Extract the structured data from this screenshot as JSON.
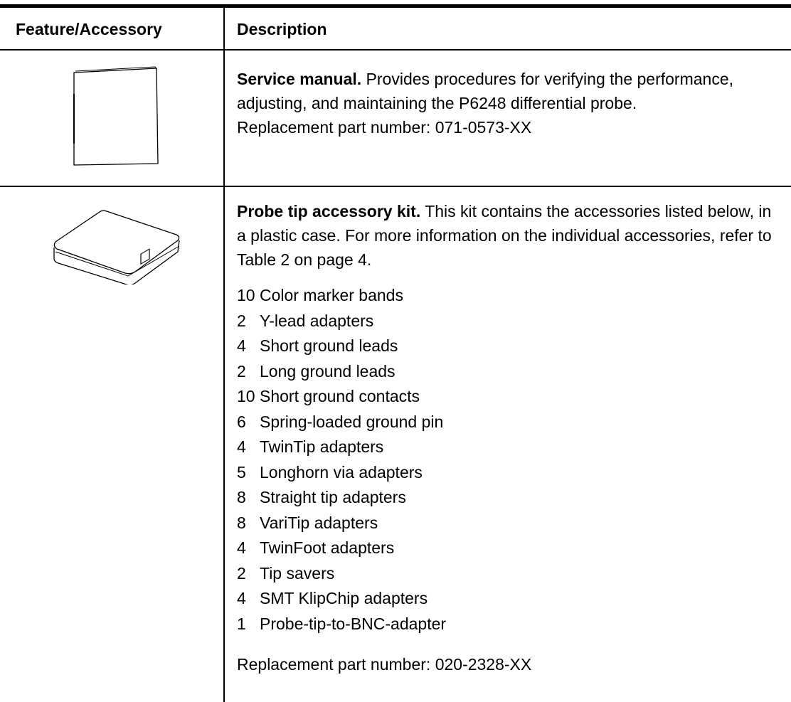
{
  "table": {
    "header": [
      "Feature/Accessory",
      "Description"
    ],
    "rows": [
      {
        "title": "Service manual.",
        "text": "Provides procedures for verifying the performance, adjusting, and maintaining the P6248 differential probe.",
        "part": "Replacement part number: 071-0573-XX"
      },
      {
        "title": "Probe tip accessory kit.",
        "text": "This kit contains the accessories listed below, in a plastic case. For more information on the individual accessories, refer to Table 2 on page 4.",
        "items": [
          {
            "qty": 10,
            "name": "Color marker bands"
          },
          {
            "qty": 2,
            "name": "Y-lead adapters"
          },
          {
            "qty": 4,
            "name": "Short ground leads"
          },
          {
            "qty": 2,
            "name": "Long ground leads"
          },
          {
            "qty": 10,
            "name": "Short ground contacts"
          },
          {
            "qty": 6,
            "name": "Spring-loaded ground pin"
          },
          {
            "qty": 4,
            "name": "TwinTip adapters"
          },
          {
            "qty": 5,
            "name": "Longhorn via adapters"
          },
          {
            "qty": 8,
            "name": "Straight tip adapters"
          },
          {
            "qty": 8,
            "name": "VariTip adapters"
          },
          {
            "qty": 4,
            "name": "TwinFoot adapters"
          },
          {
            "qty": 2,
            "name": "Tip savers"
          },
          {
            "qty": 4,
            "name": "SMT KlipChip adapters"
          },
          {
            "qty": 1,
            "name": "Probe-tip-to-BNC-adapter"
          }
        ],
        "part": "Replacement part number: 020-2328-XX"
      }
    ]
  }
}
